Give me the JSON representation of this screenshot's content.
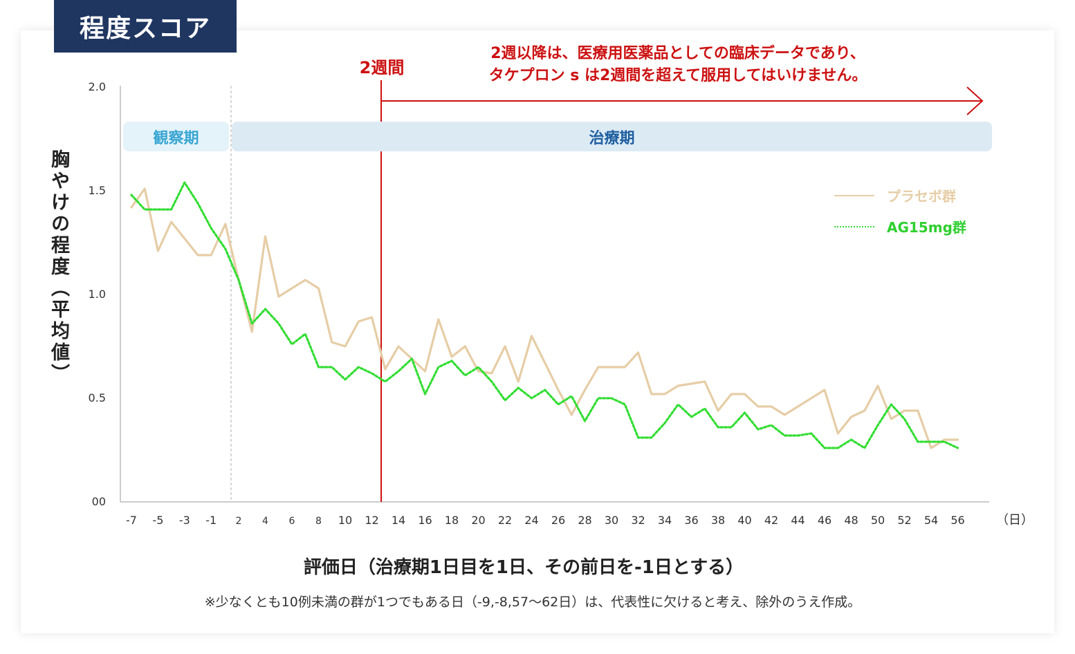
{
  "header": {
    "title": "程度スコア"
  },
  "notice": {
    "week_label": "2週間",
    "line1": "2週以降は、医療用医薬品としての臨床データであり、",
    "line2": "タケプロン s は2週間を超えて服用してはいけません。"
  },
  "periods": {
    "observation": "観察期",
    "treatment": "治療期"
  },
  "footnote": "※少なくとも10例未満の群が1つでもある日（-9,-8,57〜62日）は、代表性に欠けると考え、除外のうえ作成。",
  "colors": {
    "placebo": "#e6cda6",
    "ag15": "#33dd33",
    "accent_red": "#cc1111",
    "title_bg": "#1f3661"
  },
  "chart_data": {
    "type": "line",
    "xlabel": "評価日（治療期1日目を1日、その前日を-1日とする）",
    "ylabel": "胸やけの程度（平均値）",
    "x_unit": "（日）",
    "ylim": [
      0,
      2.0
    ],
    "yticks": [
      "00",
      "0.5",
      "1.0",
      "1.5",
      "2.0"
    ],
    "xticks": [
      -7,
      -5,
      -3,
      -1,
      2,
      4,
      6,
      8,
      10,
      12,
      14,
      16,
      18,
      20,
      22,
      24,
      26,
      28,
      30,
      32,
      34,
      36,
      38,
      40,
      42,
      44,
      46,
      48,
      50,
      52,
      54,
      56
    ],
    "x": [
      -7,
      -6,
      -5,
      -4,
      -3,
      -2,
      -1,
      1,
      2,
      3,
      4,
      5,
      6,
      7,
      8,
      9,
      10,
      11,
      12,
      13,
      14,
      15,
      16,
      17,
      18,
      19,
      20,
      21,
      22,
      23,
      24,
      25,
      26,
      27,
      28,
      29,
      30,
      31,
      32,
      33,
      34,
      35,
      36,
      37,
      38,
      39,
      40,
      41,
      42,
      43,
      44,
      45,
      46,
      47,
      48,
      49,
      50,
      51,
      52,
      53,
      54,
      55,
      56
    ],
    "series": [
      {
        "name": "プラセボ群",
        "values": [
          1.42,
          1.51,
          1.21,
          1.35,
          1.27,
          1.19,
          1.19,
          1.34,
          1.07,
          0.82,
          1.28,
          0.99,
          1.03,
          1.07,
          1.03,
          0.77,
          0.75,
          0.87,
          0.89,
          0.64,
          0.75,
          0.69,
          0.63,
          0.88,
          0.7,
          0.75,
          0.63,
          0.62,
          0.75,
          0.58,
          0.8,
          0.67,
          0.54,
          0.42,
          0.54,
          0.65,
          0.65,
          0.65,
          0.72,
          0.52,
          0.52,
          0.56,
          0.57,
          0.58,
          0.44,
          0.52,
          0.52,
          0.46,
          0.46,
          0.42,
          0.46,
          0.5,
          0.54,
          0.33,
          0.41,
          0.44,
          0.56,
          0.4,
          0.44,
          0.44,
          0.26,
          0.3,
          0.3
        ]
      },
      {
        "name": "AG15mg群",
        "values": [
          1.48,
          1.41,
          1.41,
          1.41,
          1.54,
          1.44,
          1.32,
          1.22,
          1.07,
          0.86,
          0.93,
          0.86,
          0.76,
          0.81,
          0.65,
          0.65,
          0.59,
          0.65,
          0.62,
          0.58,
          0.63,
          0.69,
          0.52,
          0.65,
          0.68,
          0.61,
          0.65,
          0.58,
          0.49,
          0.55,
          0.5,
          0.54,
          0.47,
          0.51,
          0.39,
          0.5,
          0.5,
          0.47,
          0.31,
          0.31,
          0.38,
          0.47,
          0.41,
          0.45,
          0.36,
          0.36,
          0.43,
          0.35,
          0.37,
          0.32,
          0.32,
          0.33,
          0.26,
          0.26,
          0.3,
          0.26,
          0.37,
          0.47,
          0.4,
          0.29,
          0.29,
          0.29,
          0.26
        ]
      }
    ],
    "legend": "top-right",
    "grid": false
  }
}
